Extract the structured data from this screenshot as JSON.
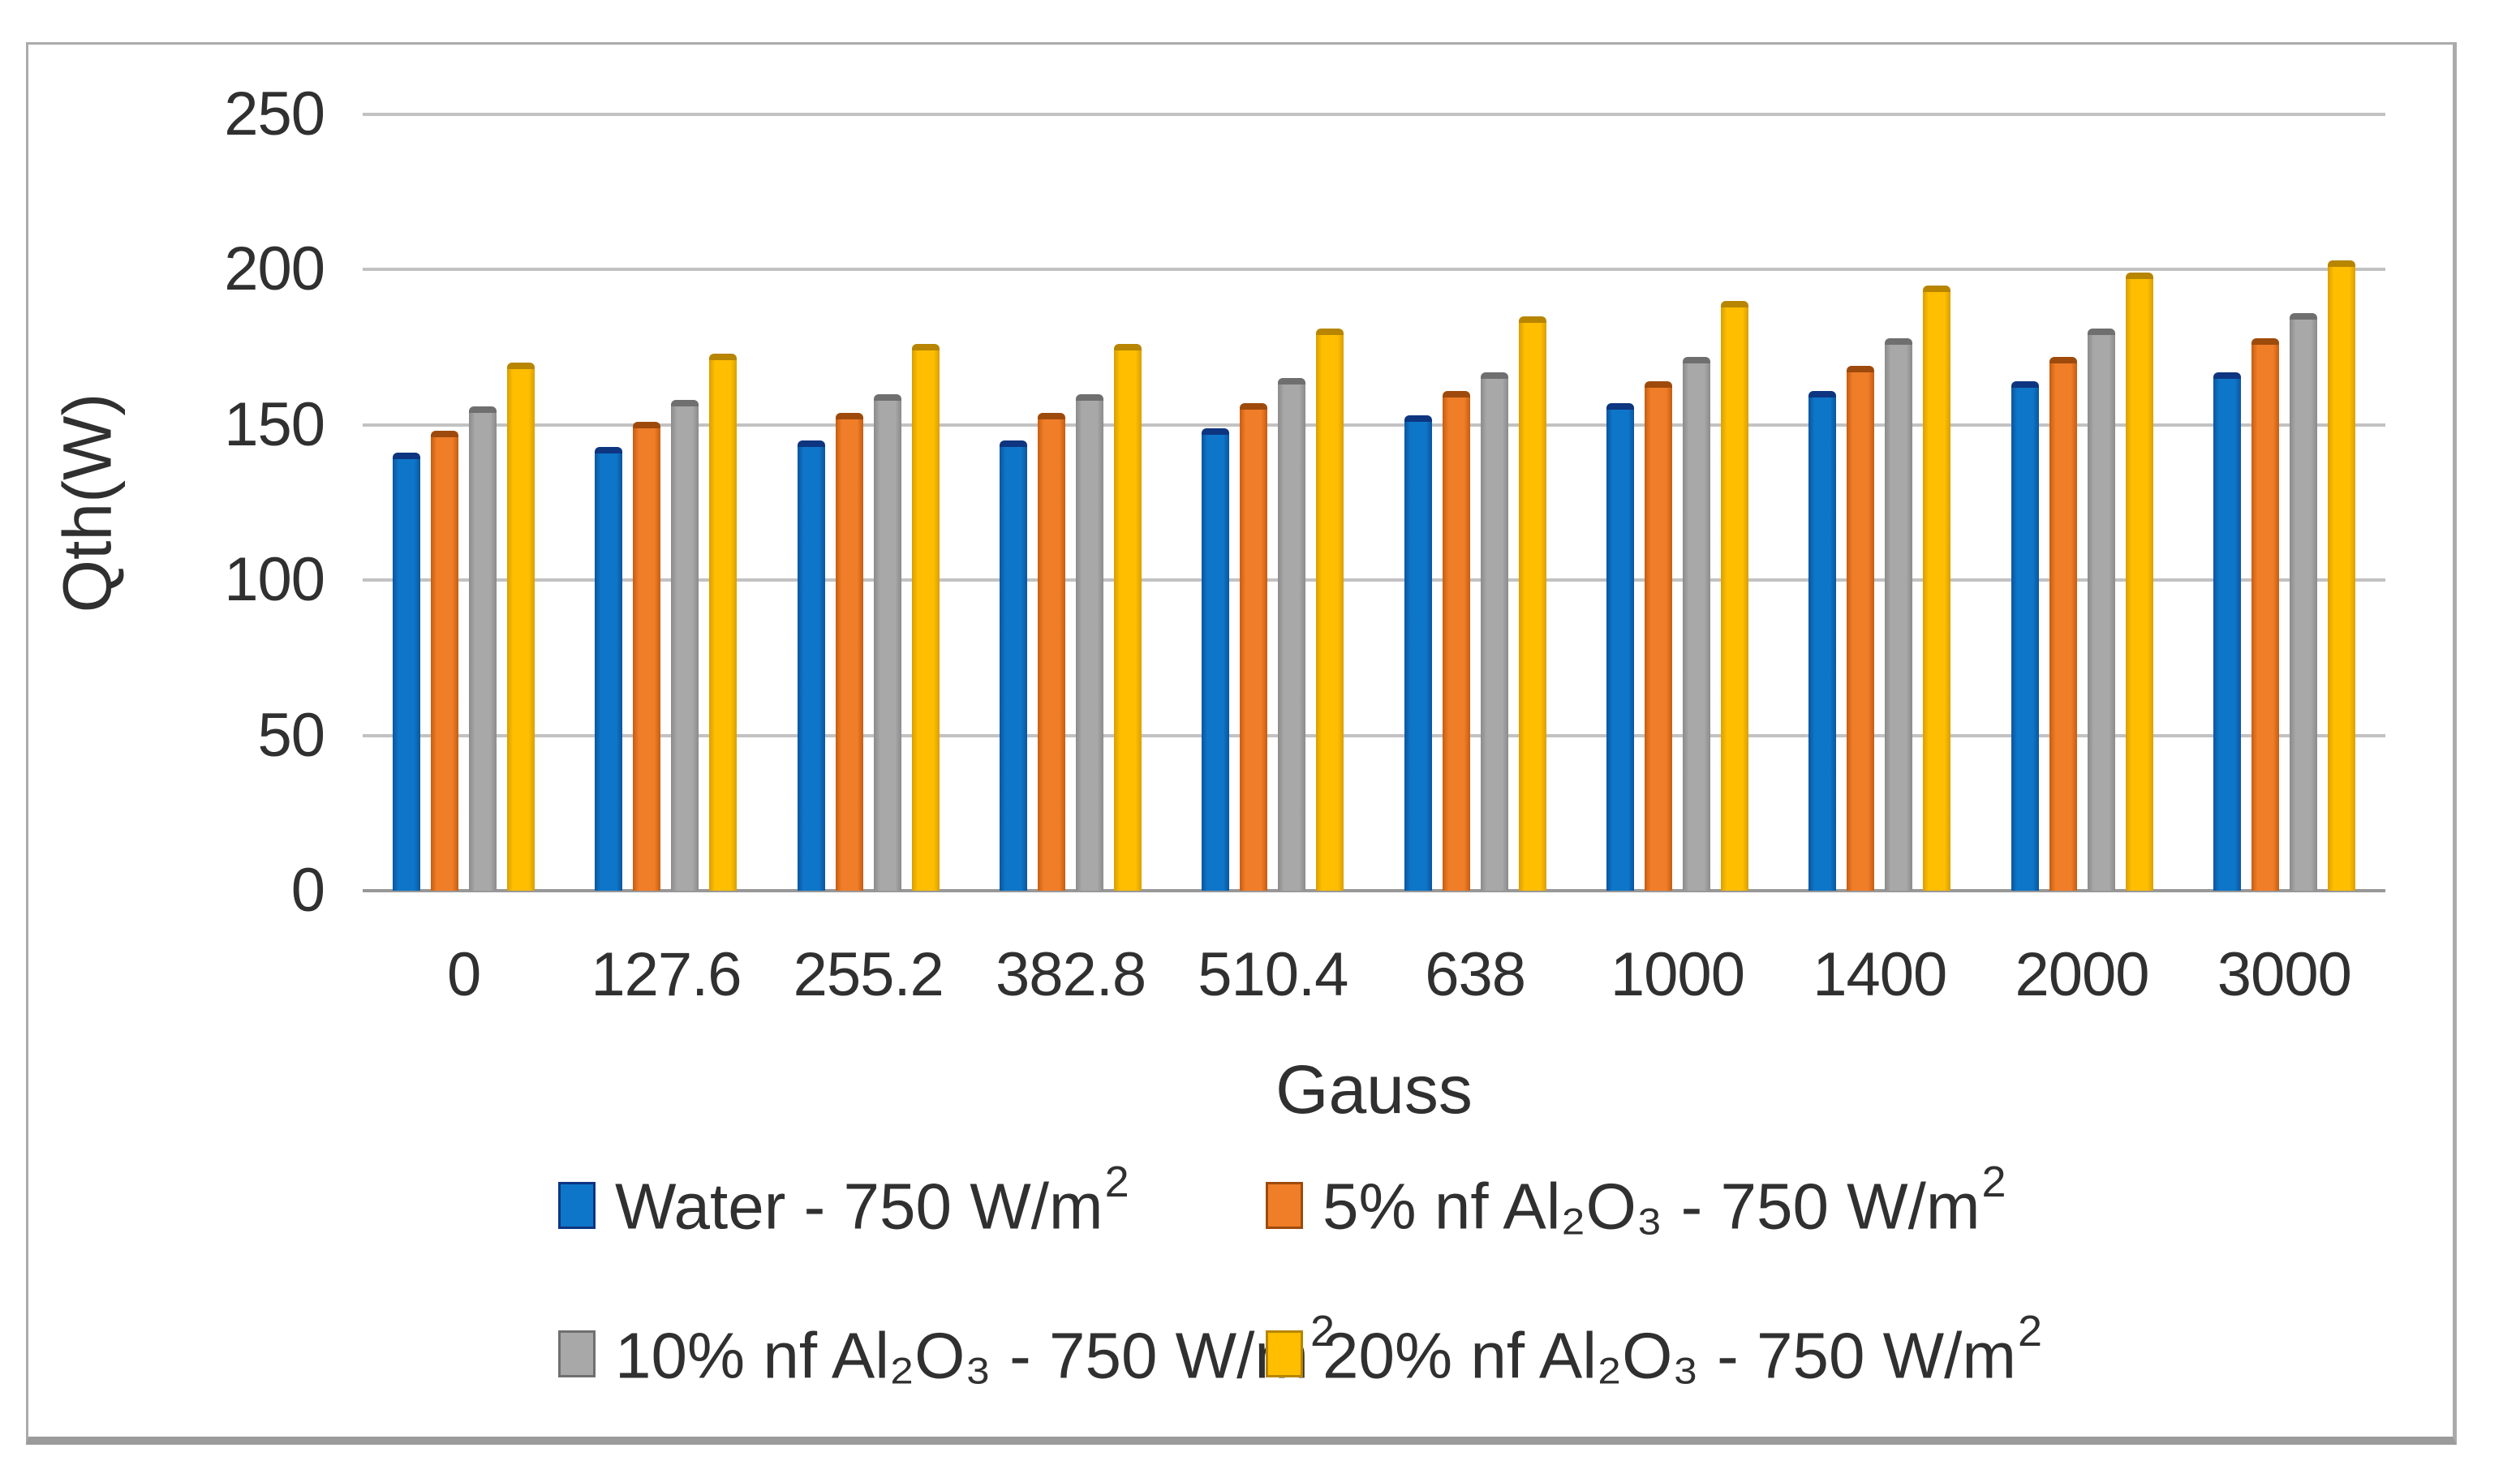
{
  "y_axis_title": "Qth(W)",
  "x_axis_title": "Gauss",
  "chart_data": {
    "type": "bar",
    "title": "",
    "xlabel": "Gauss",
    "ylabel": "Qth(W)",
    "ylim": [
      0,
      250
    ],
    "yticks": [
      0,
      50,
      100,
      150,
      200,
      250
    ],
    "grid": true,
    "legend_position": "bottom",
    "categories": [
      "0",
      "127.6",
      "255.2",
      "382.8",
      "510.4",
      "638",
      "1000",
      "1400",
      "2000",
      "3000"
    ],
    "series": [
      {
        "name": "Water - 750 W/m²",
        "label_main": "Water - 750 W/m",
        "label_sup": "2",
        "color": "#0E76C8",
        "color_edge": "#0A55A0",
        "color_cap": "#0D3580",
        "values": [
          141,
          143,
          145,
          145,
          149,
          153,
          157,
          161,
          164,
          167
        ]
      },
      {
        "name": "5% nf Al₂O₃ - 750 W/m²",
        "label_main": "5% nf Al₂O₃  - 750 W/m",
        "label_sup": "2",
        "color": "#F07D28",
        "color_edge": "#C65E11",
        "color_cap": "#9E4A0C",
        "values": [
          148,
          151,
          154,
          154,
          157,
          161,
          164,
          169,
          172,
          178
        ]
      },
      {
        "name": "10% nf Al₂O₃ - 750 W/m²",
        "label_main": "10% nf Al₂O₃  - 750 W/m",
        "label_sup": "2",
        "color": "#A8A8A8",
        "color_edge": "#8B8B8B",
        "color_cap": "#6F6F6F",
        "values": [
          156,
          158,
          160,
          160,
          165,
          167,
          172,
          178,
          181,
          186
        ]
      },
      {
        "name": "20% nf Al₂O₃ - 750 W/m²",
        "label_main": "20% nf Al₂O₃  - 750 W/m",
        "label_sup": "2",
        "color": "#FFBE00",
        "color_edge": "#D99F00",
        "color_cap": "#B78500",
        "values": [
          170,
          173,
          176,
          176,
          181,
          185,
          190,
          195,
          199,
          203
        ]
      }
    ]
  }
}
